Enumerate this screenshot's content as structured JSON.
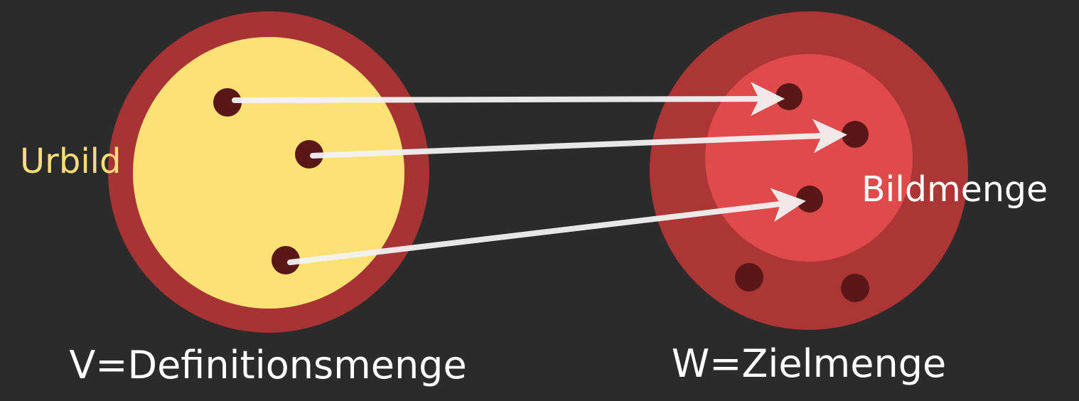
{
  "labels": {
    "preimage": "Urbild",
    "image": "Bildmenge",
    "domain": "V=Definitionsmenge",
    "codomain": "W=Zielmenge"
  },
  "colors": {
    "background": "#2b2b2b",
    "set_ring": "#a83334",
    "domain_fill": "#fee175",
    "image_fill": "#e04a4b",
    "codomain_fill": "#ac3536",
    "dot": "#5a1718",
    "arrow": "#f2f2f2",
    "preimage_text": "#f8dd78",
    "text": "#ffffff"
  }
}
